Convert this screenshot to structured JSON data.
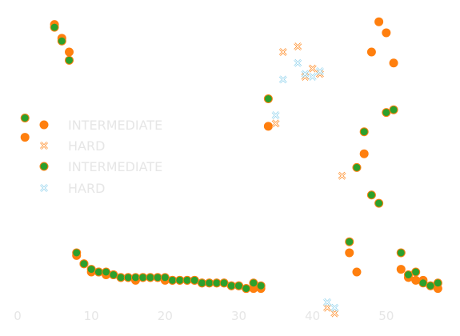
{
  "chart_data": {
    "type": "scatter",
    "title": "",
    "xlabel": "",
    "ylabel": "",
    "xlim": [
      0,
      60
    ],
    "ylim": [
      -0.07,
      1.05
    ],
    "x_ticks": [
      0,
      10,
      20,
      30,
      40,
      50
    ],
    "x_tick_labels": [
      "0",
      "10",
      "20",
      "30",
      "40",
      "50"
    ],
    "y_ticks_visible": false,
    "grid": false,
    "legend": {
      "placement": "center-left",
      "entries": [
        "INTERMEDIATE",
        "HARD",
        "INTERMEDIATE",
        "HARD"
      ]
    },
    "series": [
      {
        "name": "INTERMEDIATE",
        "marker": "circle",
        "color": "#ff7f0e",
        "points": [
          [
            1,
            0.58
          ],
          [
            5,
            0.99
          ],
          [
            6,
            0.94
          ],
          [
            7,
            0.89
          ],
          [
            8,
            0.15
          ],
          [
            9,
            0.12
          ],
          [
            10,
            0.09
          ],
          [
            11,
            0.09
          ],
          [
            12,
            0.08
          ],
          [
            13,
            0.08
          ],
          [
            14,
            0.07
          ],
          [
            15,
            0.07
          ],
          [
            16,
            0.06
          ],
          [
            17,
            0.07
          ],
          [
            18,
            0.07
          ],
          [
            19,
            0.07
          ],
          [
            20,
            0.06
          ],
          [
            21,
            0.06
          ],
          [
            22,
            0.06
          ],
          [
            23,
            0.06
          ],
          [
            24,
            0.06
          ],
          [
            25,
            0.05
          ],
          [
            26,
            0.05
          ],
          [
            27,
            0.05
          ],
          [
            28,
            0.05
          ],
          [
            29,
            0.04
          ],
          [
            30,
            0.04
          ],
          [
            31,
            0.03
          ],
          [
            32,
            0.03
          ],
          [
            33,
            0.03
          ],
          [
            34,
            0.62
          ],
          [
            47,
            0.52
          ],
          [
            48,
            0.89
          ],
          [
            49,
            1.0
          ],
          [
            50,
            0.96
          ],
          [
            51,
            0.85
          ],
          [
            45,
            0.16
          ],
          [
            46,
            0.09
          ],
          [
            52,
            0.1
          ],
          [
            53,
            0.07
          ],
          [
            54,
            0.06
          ],
          [
            55,
            0.06
          ],
          [
            56,
            0.04
          ],
          [
            57,
            0.03
          ]
        ]
      },
      {
        "name": "HARD",
        "marker": "x",
        "color": "#ff7f0e",
        "points": [
          [
            35,
            0.63
          ],
          [
            36,
            0.89
          ],
          [
            38,
            0.91
          ],
          [
            39,
            0.8
          ],
          [
            40,
            0.83
          ],
          [
            41,
            0.81
          ],
          [
            44,
            0.44
          ],
          [
            42,
            -0.04
          ],
          [
            43,
            -0.06
          ]
        ]
      },
      {
        "name": "INTERMEDIATE",
        "marker": "circle",
        "color": "#2ca02c",
        "points": [
          [
            1,
            0.65
          ],
          [
            5,
            0.98
          ],
          [
            6,
            0.93
          ],
          [
            7,
            0.86
          ],
          [
            8,
            0.16
          ],
          [
            9,
            0.12
          ],
          [
            10,
            0.1
          ],
          [
            11,
            0.09
          ],
          [
            12,
            0.09
          ],
          [
            13,
            0.08
          ],
          [
            14,
            0.07
          ],
          [
            15,
            0.07
          ],
          [
            16,
            0.07
          ],
          [
            17,
            0.07
          ],
          [
            18,
            0.07
          ],
          [
            19,
            0.07
          ],
          [
            20,
            0.07
          ],
          [
            21,
            0.06
          ],
          [
            22,
            0.06
          ],
          [
            23,
            0.06
          ],
          [
            24,
            0.06
          ],
          [
            25,
            0.05
          ],
          [
            26,
            0.05
          ],
          [
            27,
            0.05
          ],
          [
            28,
            0.05
          ],
          [
            29,
            0.04
          ],
          [
            30,
            0.04
          ],
          [
            31,
            0.03
          ],
          [
            32,
            0.05
          ],
          [
            33,
            0.04
          ],
          [
            34,
            0.72
          ],
          [
            47,
            0.6
          ],
          [
            46,
            0.47
          ],
          [
            48,
            0.37
          ],
          [
            49,
            0.34
          ],
          [
            50,
            0.67
          ],
          [
            51,
            0.68
          ],
          [
            45,
            0.2
          ],
          [
            52,
            0.16
          ],
          [
            53,
            0.08
          ],
          [
            54,
            0.09
          ],
          [
            55,
            0.05
          ],
          [
            56,
            0.04
          ],
          [
            57,
            0.05
          ]
        ]
      },
      {
        "name": "HARD",
        "marker": "x",
        "color": "#87ceeb",
        "points": [
          [
            35,
            0.66
          ],
          [
            36,
            0.79
          ],
          [
            38,
            0.85
          ],
          [
            39,
            0.81
          ],
          [
            40,
            0.8
          ],
          [
            41,
            0.82
          ],
          [
            42,
            -0.02
          ],
          [
            43,
            -0.04
          ]
        ]
      }
    ]
  }
}
